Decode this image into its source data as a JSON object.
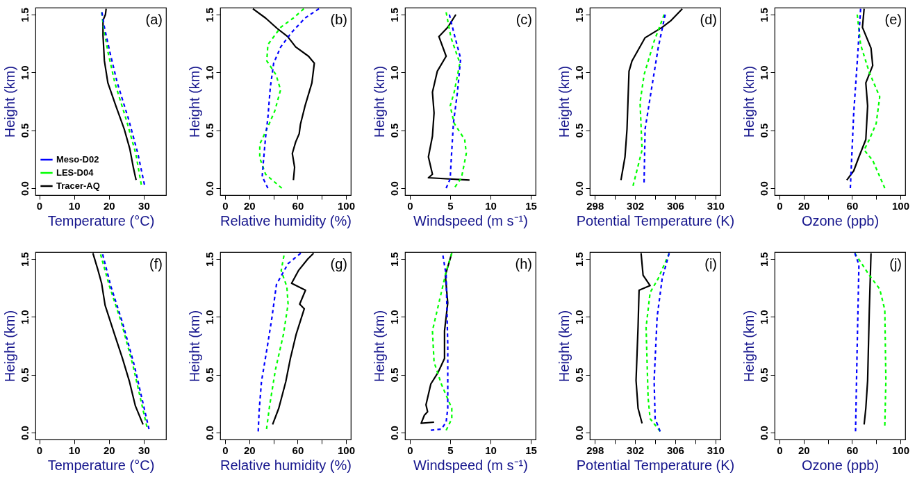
{
  "chart_data": [
    {
      "type": "line",
      "xlabel": "Temperature (°C)",
      "ylabel": "Height (km)",
      "annotations": [
        "(a)"
      ],
      "legend": "bottom left",
      "xlim": [
        -1.1,
        36.4
      ],
      "xticks": [
        0,
        10,
        20,
        30
      ],
      "ylim": [
        -0.06,
        1.56
      ],
      "yticks": [
        {
          "value": 0,
          "label": "0.0"
        },
        {
          "value": 0.5,
          "label": "0.5"
        },
        {
          "value": 1,
          "label": "1.0"
        },
        {
          "value": 1.5,
          "label": "1.5"
        }
      ],
      "series": [
        {
          "name": "Meso-D02",
          "color": "#0000ff",
          "line_style": "dashed",
          "x": [
            18.0,
            18.7,
            20.4,
            22.4,
            25.7,
            28.3,
            30.2
          ],
          "values": [
            1.52,
            1.39,
            1.16,
            0.91,
            0.59,
            0.3,
            0.03
          ]
        },
        {
          "name": "LES-D04",
          "color": "#00ff00",
          "line_style": "dashed",
          "x": [
            17.9,
            18.4,
            19.7,
            21.7,
            25.0,
            27.7,
            29.3
          ],
          "values": [
            1.52,
            1.4,
            1.18,
            0.91,
            0.59,
            0.3,
            0.03
          ]
        },
        {
          "name": "Tracer-AQ",
          "color": "#000000",
          "line_style": "solid",
          "x": [
            19.2,
            19.0,
            18.3,
            18.3,
            18.7,
            19.7,
            22.0,
            24.4,
            26.0,
            27.0,
            27.8
          ],
          "values": [
            1.55,
            1.5,
            1.45,
            1.32,
            1.1,
            0.91,
            0.71,
            0.51,
            0.34,
            0.18,
            0.07
          ]
        }
      ]
    },
    {
      "type": "line",
      "xlabel": "Relative humidity (%)",
      "ylabel": "Height (km)",
      "annotations": [
        "(b)"
      ],
      "xlim": [
        -4,
        104
      ],
      "xticks": [
        0,
        20,
        {
          "value": 40,
          "label": null
        },
        60,
        {
          "value": 80,
          "label": null
        },
        100
      ],
      "ylim": [
        -0.06,
        1.56
      ],
      "yticks": [
        {
          "value": 0,
          "label": "0.0"
        },
        {
          "value": 0.5,
          "label": "0.5"
        },
        {
          "value": 1,
          "label": "1.0"
        },
        {
          "value": 1.5,
          "label": "1.5"
        }
      ],
      "series": [
        {
          "color": "#0000ff",
          "line_style": "dashed",
          "x": [
            77.6,
            66.1,
            54.6,
            46.0,
            40.2,
            37.4,
            35.4,
            33.5,
            31.6,
            30.7,
            35.4
          ],
          "values": [
            1.55,
            1.47,
            1.34,
            1.22,
            1.08,
            0.87,
            0.61,
            0.44,
            0.22,
            0.1,
            0.0
          ]
        },
        {
          "color": "#00ff00",
          "line_style": "dashed",
          "x": [
            65.1,
            56.5,
            46.0,
            35.4,
            34.5,
            42.1,
            45.9,
            41.2,
            35.4,
            28.7,
            28.7,
            33.5,
            46.9
          ],
          "values": [
            1.55,
            1.47,
            1.39,
            1.24,
            1.1,
            0.98,
            0.85,
            0.67,
            0.53,
            0.38,
            0.26,
            0.12,
            0.0
          ]
        },
        {
          "color": "#000000",
          "line_style": "solid",
          "x": [
            23.0,
            33.5,
            43.1,
            51.7,
            58.4,
            69.0,
            73.8,
            71.8,
            66.1,
            62.3,
            61.3,
            58.4,
            55.6,
            57.5,
            56.5
          ],
          "values": [
            1.55,
            1.47,
            1.38,
            1.31,
            1.22,
            1.14,
            1.08,
            0.91,
            0.71,
            0.55,
            0.47,
            0.4,
            0.3,
            0.18,
            0.07
          ]
        }
      ]
    },
    {
      "type": "line",
      "xlabel": "Windspeed (m s⁻¹)",
      "ylabel": "Height (km)",
      "annotations": [
        "(c)"
      ],
      "xlim": [
        -0.6,
        15.6
      ],
      "xticks": [
        0,
        5,
        10,
        15
      ],
      "ylim": [
        -0.06,
        1.56
      ],
      "yticks": [
        {
          "value": 0,
          "label": "0.0"
        },
        {
          "value": 0.5,
          "label": "0.5"
        },
        {
          "value": 1,
          "label": "1.0"
        },
        {
          "value": 1.5,
          "label": "1.5"
        }
      ],
      "series": [
        {
          "color": "#0000ff",
          "line_style": "dashed",
          "x": [
            4.9,
            5.5,
            6.3,
            5.9,
            5.4,
            5.1,
            5.0,
            4.5
          ],
          "values": [
            1.5,
            1.33,
            1.12,
            0.83,
            0.56,
            0.21,
            0.08,
            0.0
          ]
        },
        {
          "color": "#00ff00",
          "line_style": "dashed",
          "x": [
            4.5,
            5.1,
            6.2,
            5.5,
            5.0,
            5.5,
            6.8,
            7.0,
            6.4,
            5.6
          ],
          "values": [
            1.52,
            1.3,
            1.08,
            0.83,
            0.71,
            0.56,
            0.42,
            0.3,
            0.09,
            0.01
          ]
        },
        {
          "color": "#000000",
          "line_style": "solid",
          "x": [
            5.7,
            4.7,
            3.6,
            4.5,
            3.4,
            2.8,
            3.0,
            2.8,
            2.3,
            2.8,
            2.3,
            7.4
          ],
          "values": [
            1.5,
            1.39,
            1.31,
            1.14,
            1.01,
            0.83,
            0.65,
            0.45,
            0.27,
            0.12,
            0.09,
            0.07
          ]
        }
      ]
    },
    {
      "type": "line",
      "xlabel": "Potential Temperature (K)",
      "ylabel": "Height (km)",
      "annotations": [
        "(d)"
      ],
      "xlim": [
        297.5,
        310.5
      ],
      "xticks": [
        298,
        {
          "value": 300,
          "label": null
        },
        302,
        {
          "value": 304,
          "label": null
        },
        306,
        {
          "value": 308,
          "label": null
        },
        310
      ],
      "ylim": [
        -0.06,
        1.56
      ],
      "yticks": [
        {
          "value": 0,
          "label": "0.0"
        },
        {
          "value": 0.5,
          "label": "0.5"
        },
        {
          "value": 1,
          "label": "1.0"
        },
        {
          "value": 1.5,
          "label": "1.5"
        }
      ],
      "series": [
        {
          "color": "#0000ff",
          "line_style": "dashed",
          "x": [
            305.0,
            304.3,
            303.7,
            303.0,
            302.9
          ],
          "values": [
            1.5,
            1.21,
            0.89,
            0.51,
            0.05
          ]
        },
        {
          "color": "#00ff00",
          "line_style": "dashed",
          "x": [
            304.9,
            303.9,
            302.9,
            302.5,
            302.7,
            301.8
          ],
          "values": [
            1.5,
            1.27,
            0.98,
            0.74,
            0.33,
            0.02
          ]
        },
        {
          "color": "#000000",
          "line_style": "solid",
          "x": [
            306.7,
            305.6,
            304.7,
            303.0,
            301.7,
            301.4,
            301.2,
            301.0,
            300.6
          ],
          "values": [
            1.55,
            1.45,
            1.39,
            1.3,
            1.1,
            1.01,
            0.51,
            0.27,
            0.07
          ]
        }
      ]
    },
    {
      "type": "line",
      "xlabel": "Ozone (ppb)",
      "ylabel": "Height (km)",
      "annotations": [
        "(e)"
      ],
      "xlim": [
        -4,
        104
      ],
      "xticks": [
        0,
        20,
        {
          "value": 40,
          "label": null
        },
        60,
        {
          "value": 80,
          "label": null
        },
        100
      ],
      "ylim": [
        -0.06,
        1.56
      ],
      "yticks": [
        {
          "value": 0,
          "label": "0.0"
        },
        {
          "value": 0.5,
          "label": "0.5"
        },
        {
          "value": 1,
          "label": "1.0"
        },
        {
          "value": 1.5,
          "label": "1.5"
        }
      ],
      "series": [
        {
          "color": "#0000ff",
          "line_style": "dashed",
          "x": [
            67.1,
            64.3,
            61.4,
            58.6
          ],
          "values": [
            1.55,
            1.09,
            0.65,
            0.0
          ]
        },
        {
          "color": "#00ff00",
          "line_style": "dashed",
          "x": [
            64.3,
            67.1,
            74.3,
            82.9,
            80.0,
            74.3,
            70.0,
            77.1,
            87.1
          ],
          "values": [
            1.5,
            1.24,
            1.0,
            0.79,
            0.56,
            0.42,
            0.33,
            0.24,
            0.0
          ]
        },
        {
          "color": "#000000",
          "line_style": "solid",
          "x": [
            70.0,
            68.6,
            75.7,
            77.1,
            71.4,
            72.9,
            71.4,
            65.7,
            61.4,
            55.7
          ],
          "values": [
            1.55,
            1.39,
            1.21,
            1.06,
            0.91,
            0.71,
            0.42,
            0.27,
            0.15,
            0.07
          ]
        }
      ]
    },
    {
      "type": "line",
      "xlabel": "Temperature (°C)",
      "ylabel": "Height (km)",
      "annotations": [
        "(f)"
      ],
      "xlim": [
        -1.1,
        36.4
      ],
      "xticks": [
        0,
        10,
        20,
        30
      ],
      "ylim": [
        -0.06,
        1.56
      ],
      "yticks": [
        {
          "value": 0,
          "label": "0.0"
        },
        {
          "value": 0.5,
          "label": "0.5"
        },
        {
          "value": 1,
          "label": "1.0"
        },
        {
          "value": 1.5,
          "label": "1.5"
        }
      ],
      "series": [
        {
          "color": "#0000ff",
          "line_style": "dashed",
          "x": [
            18.2,
            20.6,
            23.9,
            27.3,
            31.5
          ],
          "values": [
            1.54,
            1.26,
            0.95,
            0.58,
            0.03
          ]
        },
        {
          "color": "#00ff00",
          "line_style": "dashed",
          "x": [
            17.6,
            20.2,
            23.6,
            26.9,
            30.9
          ],
          "values": [
            1.54,
            1.26,
            0.95,
            0.58,
            0.05
          ]
        },
        {
          "color": "#000000",
          "line_style": "solid",
          "x": [
            15.4,
            16.9,
            17.9,
            18.9,
            21.6,
            23.9,
            25.9,
            27.6,
            29.8
          ],
          "values": [
            1.55,
            1.4,
            1.29,
            1.1,
            0.85,
            0.64,
            0.44,
            0.23,
            0.07
          ]
        }
      ]
    },
    {
      "type": "line",
      "xlabel": "Relative humidity (%)",
      "ylabel": "Height (km)",
      "annotations": [
        "(g)"
      ],
      "xlim": [
        -4,
        104
      ],
      "xticks": [
        0,
        20,
        {
          "value": 40,
          "label": null
        },
        60,
        {
          "value": 80,
          "label": null
        },
        100
      ],
      "ylim": [
        -0.06,
        1.56
      ],
      "yticks": [
        {
          "value": 0,
          "label": "0.0"
        },
        {
          "value": 0.5,
          "label": "0.5"
        },
        {
          "value": 1,
          "label": "1.0"
        },
        {
          "value": 1.5,
          "label": "1.5"
        }
      ],
      "series": [
        {
          "color": "#0000ff",
          "line_style": "dashed",
          "x": [
            62.6,
            52.1,
            42.5,
            38.7,
            34.9,
            30.1,
            28.2,
            27.4
          ],
          "values": [
            1.55,
            1.46,
            1.28,
            0.99,
            0.74,
            0.44,
            0.19,
            0.01
          ]
        },
        {
          "color": "#00ff00",
          "line_style": "dashed",
          "x": [
            48.7,
            46.4,
            51.1,
            52.1,
            48.3,
            41.6,
            36.8,
            34.3
          ],
          "values": [
            1.53,
            1.4,
            1.26,
            1.11,
            0.85,
            0.54,
            0.23,
            0.03
          ]
        },
        {
          "color": "#000000",
          "line_style": "solid",
          "x": [
            73.2,
            68.4,
            60.7,
            55.0,
            66.5,
            61.7,
            65.5,
            58.8,
            54.0,
            50.2,
            44.4,
            39.3
          ],
          "values": [
            1.55,
            1.5,
            1.4,
            1.29,
            1.23,
            1.11,
            1.07,
            0.85,
            0.64,
            0.44,
            0.21,
            0.07
          ]
        }
      ]
    },
    {
      "type": "line",
      "xlabel": "Windspeed (m s⁻¹)",
      "ylabel": "Height (km)",
      "annotations": [
        "(h)"
      ],
      "xlim": [
        -0.6,
        15.6
      ],
      "xticks": [
        0,
        5,
        10,
        15
      ],
      "ylim": [
        -0.06,
        1.56
      ],
      "yticks": [
        {
          "value": 0,
          "label": "0.0"
        },
        {
          "value": 0.5,
          "label": "0.5"
        },
        {
          "value": 1,
          "label": "1.0"
        },
        {
          "value": 1.5,
          "label": "1.5"
        }
      ],
      "series": [
        {
          "color": "#0000ff",
          "line_style": "dashed",
          "x": [
            4.1,
            4.5,
            4.7,
            4.7,
            4.5,
            3.9,
            2.6
          ],
          "values": [
            1.53,
            1.36,
            0.76,
            0.21,
            0.09,
            0.03,
            0.02
          ]
        },
        {
          "color": "#00ff00",
          "line_style": "dashed",
          "x": [
            5.2,
            4.5,
            3.7,
            2.8,
            3.0,
            3.9,
            5.2,
            5.2,
            4.5
          ],
          "values": [
            1.55,
            1.39,
            1.15,
            0.88,
            0.61,
            0.42,
            0.21,
            0.12,
            0.02
          ]
        },
        {
          "color": "#000000",
          "line_style": "solid",
          "x": [
            5.2,
            4.4,
            4.7,
            4.3,
            4.3,
            3.5,
            2.6,
            2.0,
            2.2,
            1.8,
            1.4,
            3.0
          ],
          "values": [
            1.55,
            1.36,
            1.12,
            0.88,
            0.64,
            0.52,
            0.42,
            0.24,
            0.18,
            0.15,
            0.08,
            0.09
          ]
        }
      ]
    },
    {
      "type": "line",
      "xlabel": "Potential Temperature (K)",
      "ylabel": "Height (km)",
      "annotations": [
        "(i)"
      ],
      "xlim": [
        297.5,
        310.5
      ],
      "xticks": [
        298,
        {
          "value": 300,
          "label": null
        },
        302,
        {
          "value": 304,
          "label": null
        },
        306,
        {
          "value": 308,
          "label": null
        },
        310
      ],
      "ylim": [
        -0.06,
        1.56
      ],
      "yticks": [
        {
          "value": 0,
          "label": "0.0"
        },
        {
          "value": 0.5,
          "label": "0.5"
        },
        {
          "value": 1,
          "label": "1.0"
        },
        {
          "value": 1.5,
          "label": "1.5"
        }
      ],
      "series": [
        {
          "color": "#0000ff",
          "line_style": "dashed",
          "x": [
            305.4,
            304.7,
            304.2,
            303.9,
            304.0,
            304.5
          ],
          "values": [
            1.55,
            1.33,
            1.0,
            0.45,
            0.12,
            0.01
          ]
        },
        {
          "color": "#00ff00",
          "line_style": "dashed",
          "x": [
            305.4,
            304.3,
            303.5,
            303.1,
            303.3,
            303.5,
            304.5
          ],
          "values": [
            1.55,
            1.33,
            1.21,
            0.91,
            0.3,
            0.12,
            0.01
          ]
        },
        {
          "color": "#000000",
          "line_style": "solid",
          "x": [
            302.6,
            302.8,
            303.5,
            302.4,
            302.3,
            302.1,
            302.3,
            302.7
          ],
          "values": [
            1.55,
            1.36,
            1.27,
            1.23,
            0.91,
            0.45,
            0.21,
            0.08
          ]
        }
      ]
    },
    {
      "type": "line",
      "xlabel": "Ozone (ppb)",
      "ylabel": "Height (km)",
      "annotations": [
        "(j)"
      ],
      "xlim": [
        -4,
        104
      ],
      "xticks": [
        0,
        20,
        {
          "value": 40,
          "label": null
        },
        60,
        {
          "value": 80,
          "label": null
        },
        100
      ],
      "ylim": [
        -0.06,
        1.56
      ],
      "yticks": [
        {
          "value": 0,
          "label": "0.0"
        },
        {
          "value": 0.5,
          "label": "0.5"
        },
        {
          "value": 1,
          "label": "1.0"
        },
        {
          "value": 1.5,
          "label": "1.5"
        }
      ],
      "series": [
        {
          "color": "#0000ff",
          "line_style": "dashed",
          "x": [
            62.3,
            65.7,
            64.3,
            62.9
          ],
          "values": [
            1.55,
            1.45,
            0.76,
            0.01
          ]
        },
        {
          "color": "#00ff00",
          "line_style": "dashed",
          "x": [
            62.3,
            74.3,
            82.9,
            87.1,
            88.0,
            87.1
          ],
          "values": [
            1.55,
            1.36,
            1.24,
            1.06,
            0.45,
            0.06
          ]
        },
        {
          "color": "#000000",
          "line_style": "solid",
          "x": [
            75.7,
            74.3,
            72.9,
            71.4,
            70.0
          ],
          "values": [
            1.55,
            1.06,
            0.45,
            0.21,
            0.07
          ]
        }
      ]
    }
  ]
}
